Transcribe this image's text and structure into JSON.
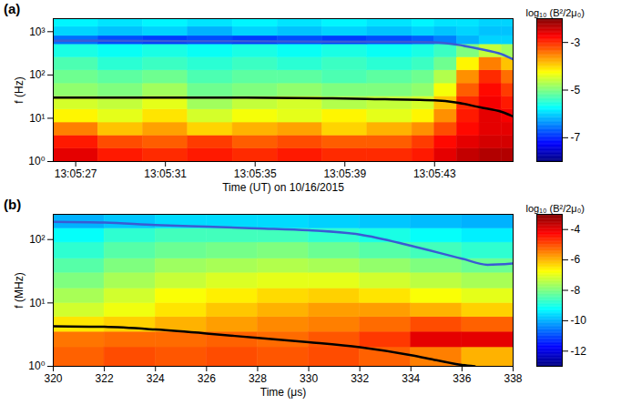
{
  "chart_data": [
    {
      "type": "heatmap",
      "panel_label": "(a)",
      "xlabel": "Time (UT) on 10/16/2015",
      "ylabel": "f (Hz)",
      "log": "y",
      "xlim": [
        26,
        46.5
      ],
      "xticks": [
        {
          "value": 27,
          "label": "13:05:27"
        },
        {
          "value": 31,
          "label": "13:05:31"
        },
        {
          "value": 35,
          "label": "13:05:35"
        },
        {
          "value": 39,
          "label": "13:05:39"
        },
        {
          "value": 43,
          "label": "13:05:43"
        }
      ],
      "ylim": [
        1,
        2000
      ],
      "yticks": [
        {
          "value": 1,
          "label": "10⁰"
        },
        {
          "value": 10,
          "label": "10¹"
        },
        {
          "value": 100,
          "label": "10²"
        },
        {
          "value": 1000,
          "label": "10³"
        }
      ],
      "x_edges": [
        26,
        28,
        30,
        32,
        34,
        36,
        38,
        40,
        42,
        43,
        44,
        45,
        46,
        46.5
      ],
      "y_edges": [
        1,
        2,
        4,
        8,
        16,
        32,
        64,
        128,
        256,
        512,
        800,
        1300,
        2000
      ],
      "cells": [
        [
          -2.6,
          -2.9,
          -3.0,
          -2.9,
          -3.0,
          -2.9,
          -3.0,
          -3.0,
          -2.9,
          -2.6,
          -2.4,
          -2.3,
          -2.3
        ],
        [
          -2.9,
          -3.2,
          -3.3,
          -3.1,
          -3.3,
          -3.2,
          -3.3,
          -3.3,
          -3.1,
          -2.8,
          -2.6,
          -2.5,
          -2.5
        ],
        [
          -3.5,
          -3.9,
          -3.7,
          -4.0,
          -3.8,
          -3.7,
          -4.0,
          -3.8,
          -3.6,
          -3.2,
          -2.8,
          -2.6,
          -2.6
        ],
        [
          -4.2,
          -4.4,
          -4.1,
          -4.5,
          -4.3,
          -4.4,
          -4.2,
          -4.4,
          -4.2,
          -3.6,
          -2.9,
          -2.6,
          -2.7
        ],
        [
          -4.5,
          -4.6,
          -4.4,
          -4.8,
          -4.6,
          -4.5,
          -4.7,
          -4.6,
          -4.5,
          -3.9,
          -3.0,
          -2.7,
          -2.9
        ],
        [
          -4.9,
          -5.0,
          -4.8,
          -5.1,
          -5.0,
          -4.9,
          -5.0,
          -5.0,
          -4.9,
          -4.3,
          -3.3,
          -2.8,
          -3.1
        ],
        [
          -5.1,
          -5.2,
          -5.1,
          -5.3,
          -5.2,
          -5.2,
          -5.3,
          -5.2,
          -5.1,
          -4.7,
          -3.6,
          -3.0,
          -3.4
        ],
        [
          -5.3,
          -5.5,
          -5.4,
          -5.5,
          -5.4,
          -5.5,
          -5.4,
          -5.5,
          -5.4,
          -5.1,
          -4.2,
          -3.5,
          -3.9
        ],
        [
          -5.6,
          -5.7,
          -5.6,
          -5.7,
          -5.6,
          -5.7,
          -5.6,
          -5.7,
          -5.6,
          -5.4,
          -5.0,
          -4.6,
          -4.8
        ],
        [
          -6.6,
          -6.8,
          -6.9,
          -6.8,
          -6.9,
          -6.8,
          -6.9,
          -6.8,
          -6.7,
          -6.5,
          -6.2,
          -6.0,
          -6.0
        ],
        [
          -6.0,
          -6.1,
          -6.0,
          -6.2,
          -6.0,
          -6.1,
          -6.0,
          -6.1,
          -6.0,
          -6.1,
          -6.0,
          -6.1,
          -6.1
        ],
        [
          -5.8,
          -5.9,
          -5.8,
          -5.9,
          -5.8,
          -5.9,
          -5.8,
          -5.9,
          -5.8,
          -5.9,
          -5.9,
          -6.0,
          -6.0
        ]
      ],
      "colorbar": {
        "label": "log₁₀ (B²/2μ₀)",
        "range": [
          -8,
          -2
        ],
        "ticks": [
          -7,
          -5,
          -3
        ]
      },
      "series": [
        {
          "color": "#3a5bd4",
          "x": [
            26,
            30,
            34,
            38,
            42,
            43,
            44,
            45,
            46,
            46.5
          ],
          "values": [
            620,
            610,
            600,
            590,
            580,
            570,
            500,
            400,
            300,
            230
          ]
        },
        {
          "color": "#000000",
          "x": [
            26,
            30,
            34,
            38,
            40,
            43,
            44,
            45,
            46,
            46.5
          ],
          "values": [
            30,
            30,
            30,
            29,
            28,
            26,
            23,
            18,
            14,
            11
          ]
        }
      ]
    },
    {
      "type": "heatmap",
      "panel_label": "(b)",
      "xlabel": "Time (μs)",
      "ylabel": "f (MHz)",
      "log": "y",
      "xlim": [
        320,
        338
      ],
      "xticks": [
        320,
        322,
        324,
        326,
        328,
        330,
        332,
        334,
        336,
        338
      ],
      "ylim": [
        1,
        250
      ],
      "yticks": [
        {
          "value": 1,
          "label": "10⁰"
        },
        {
          "value": 10,
          "label": "10¹"
        },
        {
          "value": 100,
          "label": "10²"
        }
      ],
      "x_edges": [
        320,
        322,
        324,
        326,
        328,
        330,
        332,
        334,
        336,
        338
      ],
      "y_edges": [
        1,
        2,
        3.5,
        6,
        10,
        17,
        30,
        50,
        90,
        150,
        250
      ],
      "cells": [
        [
          -5.2,
          -5.0,
          -5.1,
          -5.0,
          -5.1,
          -5.0,
          -5.2,
          -5.5,
          -6.0
        ],
        [
          -5.4,
          -5.3,
          -5.3,
          -5.2,
          -5.3,
          -5.1,
          -4.8,
          -4.0,
          -4.0
        ],
        [
          -6.5,
          -6.3,
          -6.0,
          -5.8,
          -5.6,
          -5.5,
          -5.3,
          -5.0,
          -5.2
        ],
        [
          -7.2,
          -6.9,
          -6.5,
          -6.2,
          -6.0,
          -5.8,
          -5.8,
          -6.0,
          -6.3
        ],
        [
          -7.6,
          -7.2,
          -6.8,
          -6.6,
          -6.4,
          -6.3,
          -6.5,
          -6.8,
          -7.0
        ],
        [
          -8.0,
          -7.6,
          -7.3,
          -7.1,
          -7.0,
          -7.0,
          -7.2,
          -7.4,
          -7.6
        ],
        [
          -8.4,
          -8.0,
          -7.7,
          -7.6,
          -7.5,
          -7.6,
          -7.8,
          -8.0,
          -8.2
        ],
        [
          -8.8,
          -8.4,
          -8.2,
          -8.1,
          -8.0,
          -8.2,
          -8.4,
          -8.6,
          -8.8
        ],
        [
          -9.2,
          -8.8,
          -8.6,
          -8.6,
          -8.6,
          -8.8,
          -9.0,
          -9.2,
          -9.4
        ],
        [
          -10.0,
          -9.8,
          -9.6,
          -9.6,
          -9.6,
          -9.7,
          -9.8,
          -9.9,
          -10.0
        ]
      ],
      "colorbar": {
        "label": "log₁₀ (B²/2μ₀)",
        "range": [
          -13,
          -3
        ],
        "ticks": [
          -12,
          -10,
          -8,
          -6,
          -4
        ]
      },
      "series": [
        {
          "color": "#3a5bd4",
          "x": [
            320,
            322,
            324,
            326,
            328,
            330,
            332,
            334,
            336,
            337,
            338
          ],
          "values": [
            190,
            185,
            170,
            160,
            150,
            140,
            120,
            80,
            50,
            40,
            42
          ]
        },
        {
          "color": "#000000",
          "x": [
            320,
            322,
            324,
            326,
            328,
            330,
            332,
            334,
            335,
            336,
            336.5
          ],
          "values": [
            4.3,
            4.2,
            3.8,
            3.3,
            2.8,
            2.4,
            2.0,
            1.5,
            1.25,
            1.05,
            1.0
          ]
        }
      ]
    }
  ]
}
